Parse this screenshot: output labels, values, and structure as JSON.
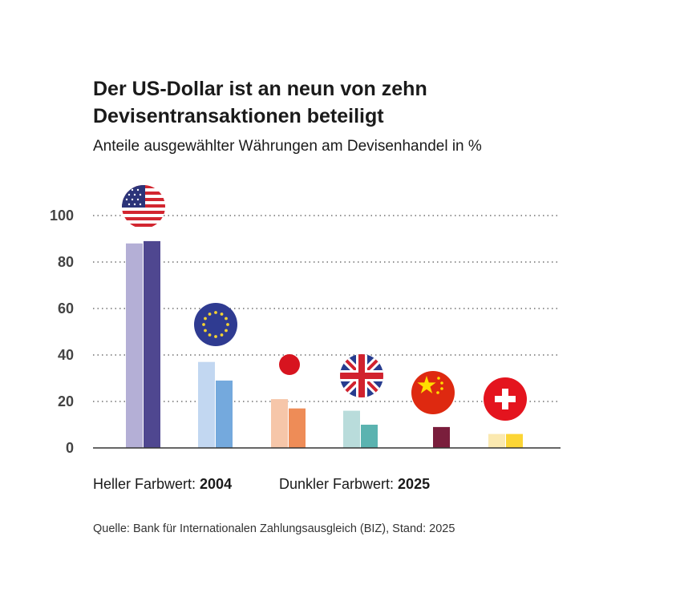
{
  "title_line1": "Der US-Dollar ist an neun von zehn",
  "title_line2": "Devisentransaktionen beteiligt",
  "subtitle": "Anteile ausgewählter Währungen am Devisenhandel in %",
  "legend": {
    "light_label": "Heller Farbwert: ",
    "light_year": "2004",
    "dark_label": "Dunkler Farbwert: ",
    "dark_year": "2025"
  },
  "source": "Quelle: Bank für Internationalen Zahlungsausgleich (BIZ), Stand: 2025",
  "chart_data": {
    "type": "bar",
    "categories": [
      "USD",
      "EUR",
      "JPY",
      "GBP",
      "CNY",
      "CHF"
    ],
    "series": [
      {
        "name": "2004",
        "values": [
          88,
          37,
          21,
          16,
          0,
          6
        ]
      },
      {
        "name": "2025",
        "values": [
          89,
          29,
          17,
          10,
          9,
          6
        ]
      }
    ],
    "ylim": [
      0,
      100
    ],
    "yticks": [
      "0",
      "20",
      "40",
      "60",
      "80",
      "100"
    ],
    "grid": true,
    "legend_position": "bottom",
    "flag_icons": [
      "us-flag-icon",
      "eu-flag-icon",
      "japan-flag-icon",
      "uk-flag-icon",
      "china-flag-icon",
      "switzerland-flag-icon"
    ],
    "colors_light": [
      "#b4afd6",
      "#c2d7f1",
      "#f6c6a9",
      "#b9dcdb",
      "#7a1e3c",
      "#fbe9b0"
    ],
    "colors_dark": [
      "#4f4790",
      "#74a9dd",
      "#ee8c57",
      "#5bb3b0",
      "#7a1e3c",
      "#fcd535"
    ]
  }
}
